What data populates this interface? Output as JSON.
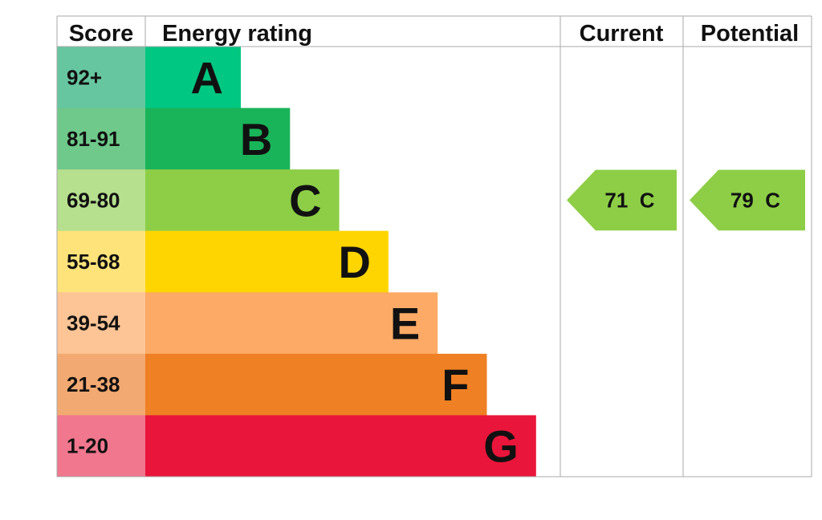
{
  "chart_data": {
    "type": "table",
    "headers": {
      "score": "Score",
      "energy_rating": "Energy rating",
      "current": "Current",
      "potential": "Potential"
    },
    "bands": [
      {
        "letter": "A",
        "range": "92+",
        "score_color": "#66c6a0",
        "bar_color": "#00c781"
      },
      {
        "letter": "B",
        "range": "81-91",
        "score_color": "#6ec98a",
        "bar_color": "#19b459"
      },
      {
        "letter": "C",
        "range": "69-80",
        "score_color": "#b6df8e",
        "bar_color": "#8dce46"
      },
      {
        "letter": "D",
        "range": "55-68",
        "score_color": "#fde37a",
        "bar_color": "#ffd500"
      },
      {
        "letter": "E",
        "range": "39-54",
        "score_color": "#fdc496",
        "bar_color": "#fcaa65"
      },
      {
        "letter": "F",
        "range": "21-38",
        "score_color": "#f3a972",
        "bar_color": "#ef8023"
      },
      {
        "letter": "G",
        "range": "1-20",
        "score_color": "#f0778e",
        "bar_color": "#e9153b"
      }
    ],
    "current": {
      "value": 71,
      "band": "C",
      "label": "71  C",
      "color": "#8dce46"
    },
    "potential": {
      "value": 79,
      "band": "C",
      "label": "79  C",
      "color": "#8dce46"
    }
  }
}
